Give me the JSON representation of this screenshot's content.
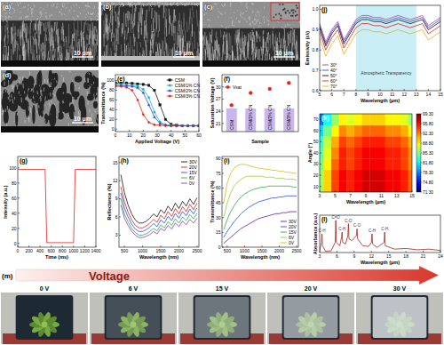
{
  "chart_data": [
    {
      "type": "line",
      "label": "(e)",
      "x_label": "Applied Voltage (V)",
      "y_label": "Transmittance (%)",
      "x": [
        0,
        4,
        8,
        12,
        16,
        20,
        24,
        28,
        32,
        36,
        40,
        44,
        48,
        52,
        56,
        60
      ],
      "xlim": [
        0,
        60
      ],
      "xticks": [
        0,
        10,
        20,
        30,
        40,
        50,
        60
      ],
      "ylim": [
        -5,
        112
      ],
      "yticks": [
        0,
        20,
        40,
        60,
        80,
        100
      ],
      "legend": "upper right",
      "series": [
        {
          "name": "CSM",
          "color": "#111111",
          "marker": "square",
          "values": [
            95,
            95,
            95,
            94,
            93,
            92,
            90,
            80,
            50,
            20,
            10,
            8,
            7,
            7,
            7,
            7
          ]
        },
        {
          "name": "CSM/1% CN",
          "color": "#1fb5c9",
          "marker": "circle",
          "values": [
            92,
            92,
            91,
            90,
            88,
            82,
            65,
            35,
            15,
            9,
            8,
            7,
            7,
            7,
            7,
            7
          ]
        },
        {
          "name": "CSM/2% CN",
          "color": "#2a4fd6",
          "marker": "triangle",
          "values": [
            90,
            90,
            89,
            88,
            85,
            75,
            50,
            25,
            12,
            8,
            7,
            7,
            7,
            7,
            7,
            7
          ]
        },
        {
          "name": "CSM/3% CN",
          "color": "#e0201b",
          "marker": "diamond",
          "values": [
            88,
            88,
            86,
            80,
            60,
            30,
            14,
            9,
            8,
            7,
            7,
            7,
            7,
            7,
            7,
            7
          ]
        }
      ]
    },
    {
      "type": "scatter",
      "label": "(f)",
      "x_label": "Sample",
      "y_label": "Saturation Voltage (V)",
      "categories": [
        "CSM",
        "CSM/1% CN",
        "CSM/2% CN",
        "CSM/3% CN"
      ],
      "ylim": [
        19,
        33
      ],
      "yticks": [
        21,
        24,
        27,
        30
      ],
      "legend": "upper left",
      "series": [
        {
          "name": "Vsat",
          "color": "#e8231f",
          "marker": "circle",
          "values": [
            25.5,
            28.5,
            29.5,
            31
          ]
        }
      ]
    },
    {
      "type": "line",
      "label": "(g)",
      "x_label": "Time (ms)",
      "y_label": "Intensity (a.u.)",
      "x": [
        0,
        490,
        520,
        1000,
        1030,
        1400
      ],
      "xlim": [
        0,
        1400
      ],
      "xticks": [
        0,
        200,
        400,
        600,
        800,
        1000,
        1200,
        1400
      ],
      "ylim": [
        -5,
        115
      ],
      "yticks": [
        0,
        20,
        40,
        60,
        80,
        100
      ],
      "series": [
        {
          "color": "#e3211c",
          "values": [
            98,
            98,
            1,
            1,
            98,
            98
          ]
        }
      ]
    },
    {
      "type": "line",
      "label": "(h)",
      "x_label": "Wavelength (nm)",
      "y_label": "Reflectance (%)",
      "x": [
        400,
        500,
        600,
        700,
        800,
        900,
        1000,
        1100,
        1200,
        1300,
        1400,
        1500,
        1600,
        1700,
        1800,
        1900,
        2000,
        2100,
        2200,
        2300,
        2400,
        2500
      ],
      "xlim": [
        350,
        2550
      ],
      "xticks": [
        500,
        1000,
        1500,
        2000,
        2500
      ],
      "ylim": [
        1,
        16
      ],
      "yticks": [
        3,
        6,
        9,
        12,
        15
      ],
      "legend": "upper right",
      "series": [
        {
          "name": "30V",
          "color": "#111111",
          "values": [
            13,
            10,
            8,
            6.5,
            5.5,
            5,
            5,
            5.3,
            5.8,
            6.5,
            6,
            7.2,
            6.6,
            7.8,
            7,
            8.3,
            7.4,
            8.6,
            7.8,
            9,
            8.1,
            9.2
          ]
        },
        {
          "name": "20V",
          "color": "#e0201b",
          "values": [
            11,
            8.5,
            6.8,
            5.5,
            4.6,
            4.2,
            4.2,
            4.5,
            5,
            5.6,
            5.1,
            6.3,
            5.7,
            6.9,
            6.1,
            7.4,
            6.5,
            7.7,
            6.9,
            8.1,
            7.2,
            8.3
          ]
        },
        {
          "name": "15V",
          "color": "#2a4fd6",
          "values": [
            10,
            7.5,
            6,
            4.8,
            4,
            3.6,
            3.6,
            3.9,
            4.3,
            4.9,
            4.4,
            5.5,
            5,
            6.1,
            5.4,
            6.6,
            5.8,
            6.9,
            6.2,
            7.3,
            6.5,
            7.5
          ]
        },
        {
          "name": "6V",
          "color": "#2fa84f",
          "values": [
            9,
            6.5,
            5.2,
            4.1,
            3.4,
            3,
            3,
            3.2,
            3.6,
            4.1,
            3.7,
            4.7,
            4.2,
            5.2,
            4.6,
            5.7,
            5,
            6,
            5.4,
            6.4,
            5.7,
            6.6
          ]
        },
        {
          "name": "0V",
          "color": "#8a3fb0",
          "values": [
            8,
            5.8,
            4.6,
            3.6,
            3,
            2.6,
            2.6,
            2.8,
            3.1,
            3.6,
            3.2,
            4.1,
            3.7,
            4.6,
            4,
            5,
            4.4,
            5.3,
            4.7,
            5.6,
            5,
            5.8
          ]
        }
      ]
    },
    {
      "type": "line",
      "label": "(i)",
      "x_label": "Wavelength (nm)",
      "y_label": "Transmittance (%)",
      "x": [
        400,
        500,
        600,
        700,
        800,
        900,
        1000,
        1100,
        1200,
        1300,
        1400,
        1500,
        1600,
        1700,
        1800,
        1900,
        2000,
        2100,
        2200,
        2300,
        2400,
        2500
      ],
      "xlim": [
        350,
        2550
      ],
      "xticks": [
        500,
        1000,
        1500,
        2000,
        2500
      ],
      "ylim": [
        0,
        92
      ],
      "yticks": [
        0,
        15,
        30,
        45,
        60,
        75,
        90
      ],
      "legend": "lower right",
      "series": [
        {
          "name": "30V",
          "color": "#6a1b9a",
          "values": [
            4,
            7,
            10,
            13,
            16,
            19,
            21,
            23,
            25,
            27,
            29,
            30,
            31,
            32,
            33,
            34,
            34,
            35,
            35,
            36,
            36,
            36
          ]
        },
        {
          "name": "20V",
          "color": "#2a4fd6",
          "values": [
            10,
            16,
            21,
            26,
            30,
            34,
            37,
            40,
            42,
            44,
            46,
            47,
            48,
            49,
            50,
            50,
            51,
            51,
            52,
            52,
            52,
            52
          ]
        },
        {
          "name": "15V",
          "color": "#2fa84f",
          "values": [
            18,
            28,
            36,
            42,
            47,
            51,
            54,
            56,
            58,
            59,
            60,
            61,
            61,
            62,
            62,
            62,
            62,
            62,
            62,
            62,
            61,
            61
          ]
        },
        {
          "name": "6V",
          "color": "#9acd32",
          "values": [
            30,
            45,
            55,
            62,
            66,
            69,
            71,
            72,
            72,
            72,
            72,
            72,
            71,
            71,
            71,
            70,
            70,
            70,
            69,
            69,
            69,
            68
          ]
        },
        {
          "name": "0V",
          "color": "#d6b81a",
          "values": [
            45,
            65,
            75,
            80,
            83,
            84,
            84,
            83,
            82,
            81,
            80,
            80,
            79,
            79,
            78,
            78,
            77,
            77,
            76,
            76,
            75,
            75
          ]
        }
      ]
    },
    {
      "type": "line",
      "label": "(j)",
      "x_label": "Wavelength (μm)",
      "y_label": "Emissivity (ελ)",
      "x": [
        5,
        5.5,
        6,
        6.5,
        7,
        7.5,
        8,
        8.5,
        9,
        9.5,
        10,
        10.5,
        11,
        11.5,
        12,
        12.5,
        13,
        13.5,
        14,
        14.5,
        15
      ],
      "xlim": [
        5,
        15
      ],
      "xticks": [
        5,
        6,
        7,
        8,
        9,
        10,
        11,
        12,
        13,
        14,
        15
      ],
      "ylim": [
        0.6,
        1.02
      ],
      "yticks": [
        0.6,
        0.7,
        0.8,
        0.9,
        {
          "value": 1,
          "label": "1.0"
        }
      ],
      "legend": "lower left",
      "annotations": [
        {
          "text": "Atmospheric Transparency",
          "x": [
            8,
            13
          ],
          "y": 0.68
        }
      ],
      "series": [
        {
          "name": "30°",
          "color": "#c0399a",
          "values": [
            0.93,
            0.84,
            0.9,
            0.94,
            0.85,
            0.9,
            0.95,
            0.97,
            0.97,
            0.96,
            0.96,
            0.95,
            0.96,
            0.97,
            0.96,
            0.95,
            0.96,
            0.97,
            0.92,
            0.94,
            0.96
          ]
        },
        {
          "name": "40°",
          "color": "#2a4fd6",
          "values": [
            0.92,
            0.83,
            0.89,
            0.93,
            0.84,
            0.89,
            0.94,
            0.96,
            0.96,
            0.95,
            0.95,
            0.94,
            0.95,
            0.96,
            0.95,
            0.94,
            0.95,
            0.96,
            0.91,
            0.93,
            0.95
          ]
        },
        {
          "name": "50°",
          "color": "#111111",
          "values": [
            0.91,
            0.82,
            0.88,
            0.92,
            0.83,
            0.88,
            0.93,
            0.95,
            0.95,
            0.94,
            0.94,
            0.93,
            0.94,
            0.95,
            0.94,
            0.93,
            0.94,
            0.95,
            0.9,
            0.92,
            0.94
          ]
        },
        {
          "name": "60°",
          "color": "#e0201b",
          "values": [
            0.89,
            0.8,
            0.86,
            0.9,
            0.81,
            0.86,
            0.91,
            0.93,
            0.93,
            0.92,
            0.92,
            0.91,
            0.92,
            0.93,
            0.92,
            0.91,
            0.92,
            0.93,
            0.88,
            0.9,
            0.92
          ]
        },
        {
          "name": "70°",
          "color": "#e3b31a",
          "values": [
            0.86,
            0.77,
            0.83,
            0.87,
            0.78,
            0.83,
            0.88,
            0.9,
            0.9,
            0.89,
            0.89,
            0.88,
            0.89,
            0.9,
            0.89,
            0.88,
            0.89,
            0.9,
            0.85,
            0.87,
            0.89
          ]
        }
      ]
    },
    {
      "type": "heatmap",
      "label": "(k)",
      "x_label": "Wavelength (μm)",
      "y_label": "Angle (°)",
      "x": [
        3,
        4,
        5,
        6,
        7,
        8,
        9,
        10,
        11,
        12,
        13,
        14,
        15
      ],
      "y": [
        10,
        20,
        30,
        40,
        50,
        60,
        70
      ],
      "xlim": [
        3,
        15
      ],
      "xticks": [
        3,
        5,
        7,
        9,
        11,
        13,
        15
      ],
      "ylim": [
        5,
        75
      ],
      "yticks": [
        10,
        20,
        30,
        40,
        50,
        60,
        70
      ],
      "cells": [
        [
          86,
          90,
          94,
          96,
          95,
          96,
          97,
          97,
          97,
          96,
          96,
          95,
          93
        ],
        [
          86,
          90,
          94,
          96,
          95,
          96,
          97,
          97,
          97,
          96,
          96,
          95,
          93
        ],
        [
          85,
          89,
          93,
          95,
          94,
          95,
          96,
          96,
          96,
          95,
          95,
          94,
          92
        ],
        [
          84,
          88,
          92,
          95,
          94,
          95,
          96,
          96,
          96,
          95,
          95,
          94,
          92
        ],
        [
          83,
          87,
          91,
          94,
          93,
          94,
          95,
          95,
          95,
          94,
          94,
          93,
          91
        ],
        [
          81,
          85,
          89,
          92,
          91,
          92,
          93,
          93,
          93,
          92,
          92,
          91,
          89
        ],
        [
          78,
          82,
          86,
          89,
          88,
          89,
          90,
          90,
          90,
          89,
          89,
          88,
          86
        ]
      ],
      "colorbar": {
        "range": [
          71.3,
          99.3
        ],
        "ticks": [
          {
            "value": 99.3,
            "label": "99.30"
          },
          {
            "value": 95.8,
            "label": "95.80"
          },
          {
            "value": 92.3,
            "label": "92.30"
          },
          {
            "value": 88.8,
            "label": "88.80"
          },
          {
            "value": 85.3,
            "label": "85.30"
          },
          {
            "value": 81.8,
            "label": "81.80"
          },
          {
            "value": 78.3,
            "label": "78.30"
          },
          {
            "value": 74.8,
            "label": "74.80"
          },
          {
            "value": 71.3,
            "label": "71.30"
          }
        ]
      }
    },
    {
      "type": "line",
      "label": "(l)",
      "x_label": "Wavelength (μm)",
      "y_label": "Absorbance (a.u.)",
      "x": [
        3,
        3.3,
        3.4,
        3.5,
        4,
        5,
        5.7,
        5.8,
        5.9,
        6.5,
        6.8,
        6.9,
        7,
        7.5,
        7.9,
        8,
        8.1,
        8.6,
        9.4,
        9.5,
        9.6,
        10.5,
        11.5,
        12,
        12.1,
        12.2,
        13,
        14.2,
        14.3,
        14.4,
        16,
        18,
        20,
        22,
        24
      ],
      "xlim": [
        3,
        24
      ],
      "xticks": [
        3,
        6,
        9,
        12,
        15,
        18,
        21,
        24
      ],
      "ylim": [
        0,
        1.1
      ],
      "tick_labels": "x",
      "annotations": [
        {
          "text": "C-H",
          "x": 3.4,
          "y": 0.55
        },
        {
          "text": "C=O",
          "x": 5.8,
          "y": 0.95
        },
        {
          "text": "C-H",
          "x": 6.9,
          "y": 0.6
        },
        {
          "text": "C-O",
          "x": 8,
          "y": 0.85
        },
        {
          "text": "C-O",
          "x": 9.5,
          "y": 0.7
        },
        {
          "text": "C-H",
          "x": 12.1,
          "y": 0.55
        },
        {
          "text": "C-H",
          "x": 14.3,
          "y": 0.6
        }
      ],
      "series": [
        {
          "color": "#a3231f",
          "values": [
            0.05,
            0.3,
            0.55,
            0.2,
            0.04,
            0.05,
            0.3,
            0.95,
            0.3,
            0.2,
            0.45,
            0.6,
            0.3,
            0.25,
            0.5,
            0.85,
            0.4,
            0.35,
            0.5,
            0.7,
            0.4,
            0.2,
            0.18,
            0.3,
            0.55,
            0.25,
            0.15,
            0.3,
            0.6,
            0.2,
            0.1,
            0.12,
            0.08,
            0.1,
            0.06
          ]
        }
      ]
    }
  ],
  "sem_images": [
    {
      "label": "(a)",
      "scale_bar": "10 μm"
    },
    {
      "label": "(b)",
      "scale_bar": "10 μm"
    },
    {
      "label": "(c)",
      "scale_bar": "10 μm"
    },
    {
      "label": "(d)",
      "scale_bar": "10 μm"
    }
  ],
  "photo_panel": {
    "label": "(m)",
    "arrow_text": "Voltage",
    "frames": [
      "0 V",
      "6 V",
      "15 V",
      "20 V",
      "30 V"
    ]
  }
}
